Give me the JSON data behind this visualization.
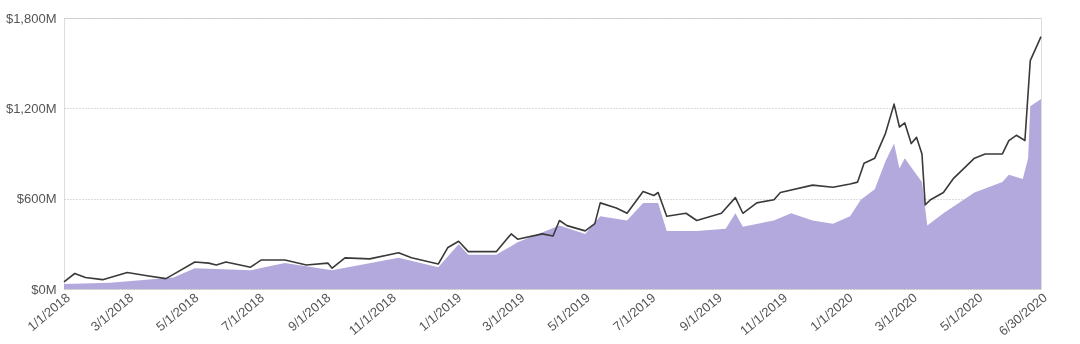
{
  "chart_data": {
    "type": "area",
    "series": [
      {
        "color": "#b3a9dc",
        "x": [
          "2018-01-01",
          "2018-02-13",
          "2018-04-13",
          "2018-05-03",
          "2018-06-24",
          "2018-07-26",
          "2018-09-08",
          "2018-11-09",
          "2018-12-16",
          "2019-01-04",
          "2019-01-13",
          "2019-02-08",
          "2019-02-28",
          "2019-04-08",
          "2019-05-02",
          "2019-05-16",
          "2019-06-10",
          "2019-06-25",
          "2019-07-09",
          "2019-07-17",
          "2019-08-14",
          "2019-09-10",
          "2019-09-19",
          "2019-09-26",
          "2019-10-25",
          "2019-11-10",
          "2019-11-30",
          "2019-12-19",
          "2020-01-04",
          "2020-01-14",
          "2020-01-27",
          "2020-02-06",
          "2020-02-14",
          "2020-02-19",
          "2020-02-24",
          "2020-03-06",
          "2020-03-11",
          "2020-03-16",
          "2020-03-31",
          "2020-04-29",
          "2020-05-25",
          "2020-05-31",
          "2020-06-13",
          "2020-06-18",
          "2020-06-20",
          "2020-06-30"
        ],
        "values": [
          34,
          41,
          76,
          138,
          124,
          172,
          124,
          207,
          145,
          297,
          228,
          228,
          310,
          421,
          366,
          483,
          455,
          572,
          572,
          386,
          386,
          400,
          503,
          414,
          455,
          503,
          455,
          434,
          483,
          593,
          662,
          848,
          966,
          800,
          869,
          759,
          710,
          421,
          503,
          641,
          710,
          759,
          731,
          869,
          1214,
          1262
        ]
      },
      {
        "type": "line",
        "color": "#3a3a3a",
        "x": [
          "2018-01-01",
          "2018-01-11",
          "2018-01-21",
          "2018-02-06",
          "2018-03-01",
          "2018-03-18",
          "2018-04-06",
          "2018-04-13",
          "2018-05-03",
          "2018-05-16",
          "2018-05-23",
          "2018-06-01",
          "2018-06-24",
          "2018-07-04",
          "2018-07-26",
          "2018-08-15",
          "2018-09-04",
          "2018-09-08",
          "2018-09-20",
          "2018-10-13",
          "2018-11-09",
          "2018-11-21",
          "2018-12-08",
          "2018-12-16",
          "2018-12-25",
          "2019-01-04",
          "2019-01-13",
          "2019-02-02",
          "2019-02-08",
          "2019-02-22",
          "2019-02-28",
          "2019-03-23",
          "2019-04-02",
          "2019-04-08",
          "2019-04-15",
          "2019-05-02",
          "2019-05-11",
          "2019-05-16",
          "2019-05-31",
          "2019-06-10",
          "2019-06-25",
          "2019-07-05",
          "2019-07-09",
          "2019-07-17",
          "2019-08-04",
          "2019-08-14",
          "2019-09-06",
          "2019-09-19",
          "2019-09-26",
          "2019-10-09",
          "2019-10-25",
          "2019-10-31",
          "2019-11-30",
          "2019-12-19",
          "2020-01-04",
          "2020-01-11",
          "2020-01-17",
          "2020-01-27",
          "2020-02-06",
          "2020-02-14",
          "2020-02-19",
          "2020-02-24",
          "2020-03-01",
          "2020-03-06",
          "2020-03-11",
          "2020-03-14",
          "2020-03-19",
          "2020-03-31",
          "2020-04-09",
          "2020-04-29",
          "2020-05-09",
          "2020-05-25",
          "2020-05-31",
          "2020-06-07",
          "2020-06-15",
          "2020-06-20",
          "2020-06-27",
          "2020-06-30"
        ],
        "values": [
          48,
          103,
          76,
          62,
          110,
          90,
          69,
          97,
          179,
          172,
          159,
          179,
          145,
          193,
          193,
          159,
          172,
          138,
          207,
          200,
          241,
          207,
          179,
          166,
          276,
          317,
          248,
          248,
          248,
          366,
          331,
          366,
          352,
          455,
          421,
          386,
          434,
          572,
          538,
          503,
          648,
          621,
          641,
          483,
          503,
          455,
          503,
          607,
          503,
          572,
          593,
          641,
          690,
          676,
          697,
          710,
          835,
          869,
          1034,
          1228,
          1076,
          1103,
          966,
          1007,
          897,
          559,
          593,
          641,
          731,
          869,
          897,
          897,
          986,
          1021,
          986,
          1517,
          1628,
          1676
        ]
      }
    ],
    "xlim": [
      "2018-01-01",
      "2020-06-30"
    ],
    "xticks": [
      {
        "value": "2018-01-01",
        "label": "1/1/2018"
      },
      {
        "value": "2018-03-01",
        "label": "3/1/2018"
      },
      {
        "value": "2018-05-01",
        "label": "5/1/2018"
      },
      {
        "value": "2018-07-01",
        "label": "7/1/2018"
      },
      {
        "value": "2018-09-01",
        "label": "9/1/2018"
      },
      {
        "value": "2018-11-01",
        "label": "11/1/2018"
      },
      {
        "value": "2019-01-01",
        "label": "1/1/2019"
      },
      {
        "value": "2019-03-01",
        "label": "3/1/2019"
      },
      {
        "value": "2019-05-01",
        "label": "5/1/2019"
      },
      {
        "value": "2019-07-01",
        "label": "7/1/2019"
      },
      {
        "value": "2019-09-01",
        "label": "9/1/2019"
      },
      {
        "value": "2019-11-01",
        "label": "11/1/2019"
      },
      {
        "value": "2020-01-01",
        "label": "1/1/2020"
      },
      {
        "value": "2020-03-01",
        "label": "3/1/2020"
      },
      {
        "value": "2020-05-01",
        "label": "5/1/2020"
      },
      {
        "value": "2020-06-30",
        "label": "6/30/2020"
      }
    ],
    "ylim": [
      0,
      1800
    ],
    "yticks": [
      {
        "value": 0,
        "label": "$0M"
      },
      {
        "value": 600,
        "label": "$600M"
      },
      {
        "value": 1200,
        "label": "$1,200M"
      },
      {
        "value": 1800,
        "label": "$1,800M"
      }
    ],
    "grid": "y"
  }
}
